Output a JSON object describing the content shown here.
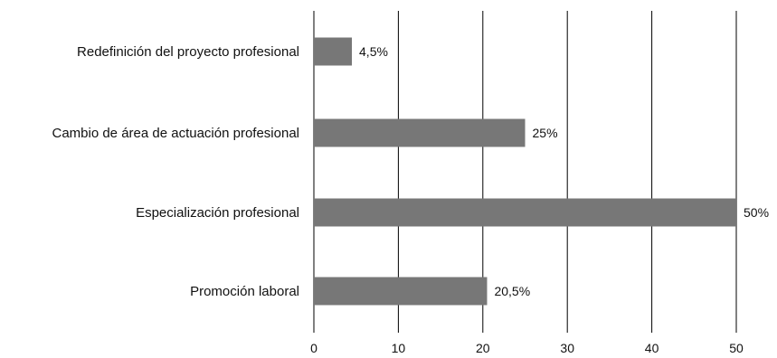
{
  "chart_data": {
    "type": "bar",
    "orientation": "horizontal",
    "categories": [
      "Redefinición del proyecto profesional",
      "Cambio de área de actuación profesional",
      "Especialización profesional",
      "Promoción laboral"
    ],
    "values": [
      4.5,
      25,
      50,
      20.5
    ],
    "value_labels": [
      "4,5%",
      "25%",
      "50%",
      "20,5%"
    ],
    "xlim": [
      0,
      50
    ],
    "x_ticks": [
      0,
      10,
      20,
      30,
      40,
      50
    ],
    "x_tick_labels": [
      "0",
      "10",
      "20",
      "30",
      "40",
      "50"
    ],
    "title": "",
    "xlabel": "",
    "ylabel": "",
    "grid": "vertical lines at ticks",
    "legend": "none",
    "bar_color": "#777777",
    "grid_color": "#000000"
  }
}
